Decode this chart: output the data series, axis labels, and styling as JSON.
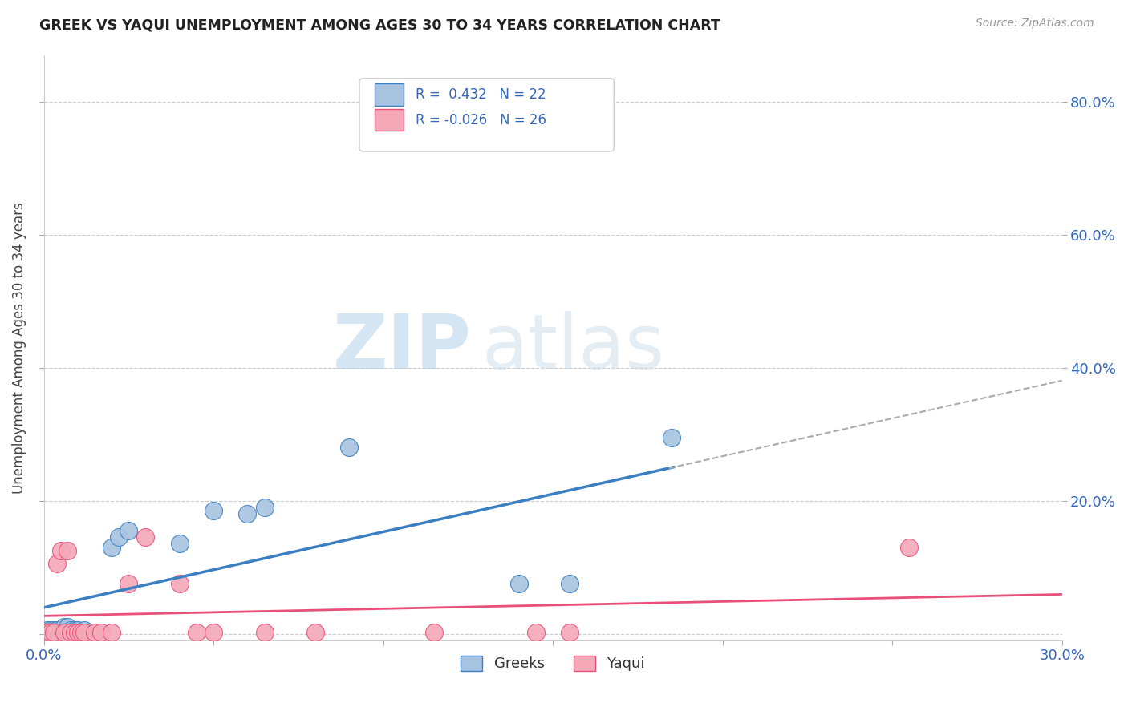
{
  "title": "GREEK VS YAQUI UNEMPLOYMENT AMONG AGES 30 TO 34 YEARS CORRELATION CHART",
  "source": "Source: ZipAtlas.com",
  "ylabel": "Unemployment Among Ages 30 to 34 years",
  "xlim": [
    0.0,
    0.3
  ],
  "ylim": [
    -0.01,
    0.87
  ],
  "greeks_color": "#a8c4e0",
  "yaqui_color": "#f4a8b8",
  "greeks_line_color": "#3a7fc1",
  "yaqui_line_color": "#e8507a",
  "greeks_R": 0.432,
  "greeks_N": 22,
  "yaqui_R": -0.026,
  "yaqui_N": 26,
  "greeks_x": [
    0.001,
    0.002,
    0.003,
    0.004,
    0.005,
    0.006,
    0.007,
    0.008,
    0.009,
    0.01,
    0.012,
    0.02,
    0.022,
    0.025,
    0.04,
    0.05,
    0.06,
    0.065,
    0.09,
    0.14,
    0.155,
    0.185
  ],
  "greeks_y": [
    0.005,
    0.005,
    0.005,
    0.005,
    0.005,
    0.01,
    0.01,
    0.005,
    0.005,
    0.005,
    0.005,
    0.13,
    0.145,
    0.155,
    0.135,
    0.185,
    0.18,
    0.19,
    0.28,
    0.075,
    0.075,
    0.295
  ],
  "yaqui_x": [
    0.001,
    0.002,
    0.003,
    0.004,
    0.005,
    0.006,
    0.007,
    0.008,
    0.009,
    0.01,
    0.011,
    0.012,
    0.015,
    0.017,
    0.02,
    0.025,
    0.03,
    0.04,
    0.045,
    0.05,
    0.065,
    0.08,
    0.115,
    0.145,
    0.155,
    0.255
  ],
  "yaqui_y": [
    0.002,
    0.002,
    0.002,
    0.105,
    0.125,
    0.002,
    0.125,
    0.002,
    0.002,
    0.002,
    0.002,
    0.002,
    0.002,
    0.002,
    0.002,
    0.075,
    0.145,
    0.075,
    0.002,
    0.002,
    0.002,
    0.002,
    0.002,
    0.002,
    0.002,
    0.13
  ],
  "background_color": "#ffffff",
  "grid_color": "#cccccc",
  "watermark_zip": "ZIP",
  "watermark_atlas": "atlas",
  "watermark_color": "#c8dff0"
}
